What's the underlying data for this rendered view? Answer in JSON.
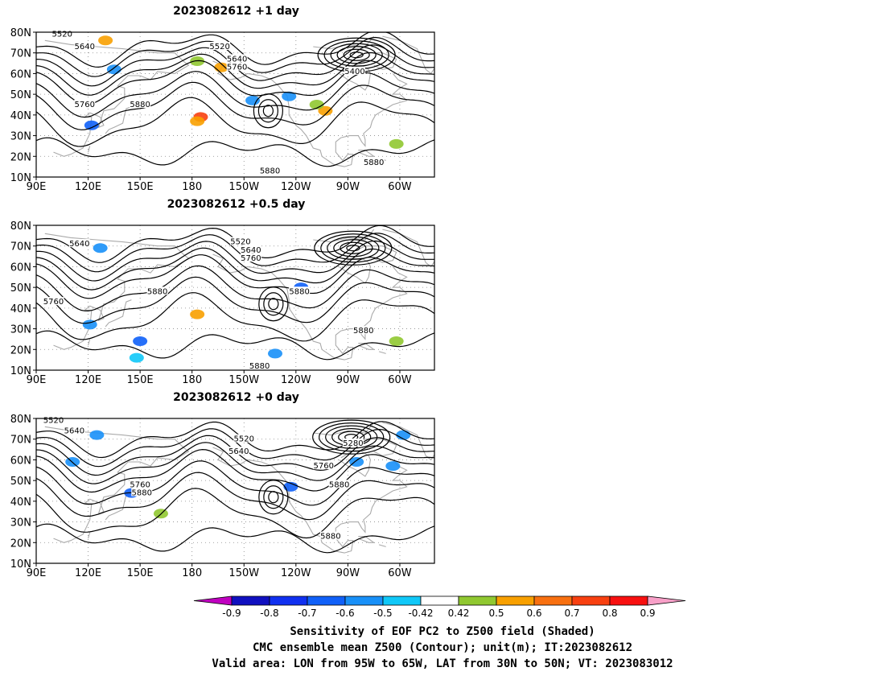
{
  "panels": [
    {
      "title": "2023082612  +1 day",
      "contour_labels": [
        "5520",
        "5640",
        "5520",
        "5640",
        "5760",
        "5400",
        "5760",
        "5880",
        "5880",
        "5880"
      ],
      "low_center": {
        "lon": -85,
        "lat": 69
      },
      "high_center": {
        "lon": -136,
        "lat": 42
      }
    },
    {
      "title": "2023082612  +0.5 day",
      "contour_labels": [
        "5640",
        "5520",
        "5640",
        "5760",
        "5760",
        "5880",
        "5880",
        "5880",
        "5880"
      ],
      "low_center": {
        "lon": -87,
        "lat": 69
      },
      "high_center": {
        "lon": -133,
        "lat": 42
      }
    },
    {
      "title": "2023082612  +0 day",
      "contour_labels": [
        "5520",
        "5640",
        "5520",
        "5640",
        "5280",
        "5760",
        "5760",
        "5880",
        "5880",
        "5880"
      ],
      "low_center": {
        "lon": -88,
        "lat": 71
      },
      "high_center": {
        "lon": -133,
        "lat": 42
      }
    }
  ],
  "axes": {
    "lat_ticks": [
      "80N",
      "70N",
      "60N",
      "50N",
      "40N",
      "30N",
      "20N",
      "10N"
    ],
    "lon_ticks": [
      "90E",
      "120E",
      "150E",
      "180",
      "150W",
      "120W",
      "90W",
      "60W"
    ],
    "lat_range": [
      10,
      80
    ],
    "lon_range": [
      90,
      320
    ]
  },
  "colorbar": {
    "labels": [
      "-0.9",
      "-0.8",
      "-0.7",
      "-0.6",
      "-0.5",
      "-0.42",
      "0.42",
      "0.5",
      "0.6",
      "0.7",
      "0.8",
      "0.9"
    ],
    "colors": [
      "#c000c0",
      "#1010c0",
      "#1030f0",
      "#1060f8",
      "#1890f8",
      "#10c8f8",
      "#ffffff",
      "#90c830",
      "#f8a000",
      "#f87010",
      "#f84010",
      "#f81010",
      "#f8a0c8"
    ]
  },
  "caption": {
    "line1": "Sensitivity of EOF PC2 to Z500 field (Shaded)",
    "line2": "CMC ensemble mean Z500 (Contour); unit(m); IT:2023082612",
    "line3": "Valid area: LON from 95W to 65W, LAT from 30N to 50N; VT: 2023083012"
  }
}
